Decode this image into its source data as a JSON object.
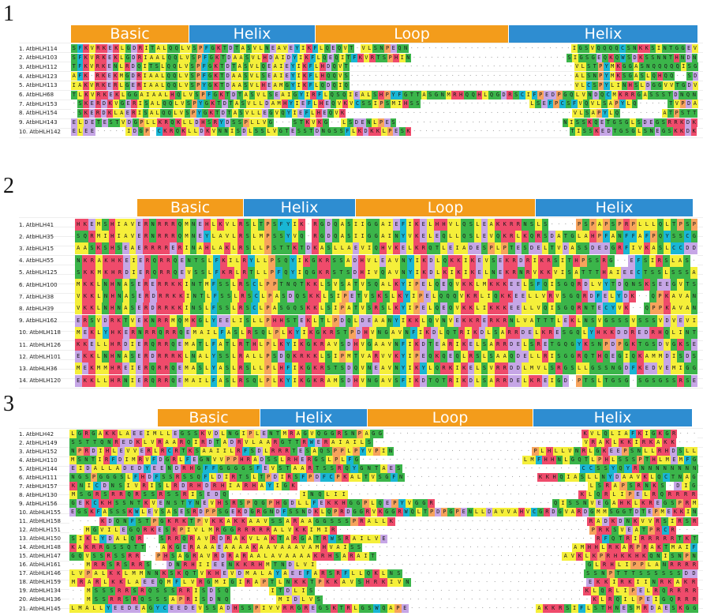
{
  "colors": {
    "basic": "#f39c1b",
    "helix": "#2e8dd1",
    "loop": "#f39c1b",
    "residue_palette": {
      "hydrophobic": "#f5ef3a",
      "polar": "#3bb54a",
      "positive": "#ef4b6b",
      "negative": "#c6a6e6",
      "aromatic": "#19b6d4",
      "special": "#f7a35c",
      "gap": "#ffffff"
    }
  },
  "panels": [
    {
      "number": "1",
      "domains": [
        {
          "label": "Basic",
          "color": "basic"
        },
        {
          "label": "Helix",
          "color": "helix"
        },
        {
          "label": "Loop",
          "color": "loop"
        },
        {
          "label": "Helix",
          "color": "helix"
        }
      ],
      "sequences": [
        {
          "name": "1. AtbHLH114",
          "seq": "SFKVRKEKLGDRITALQQLVSPFGKTDTASVLNEAVEYIKFLQEQVT-VLSNPEQN---------------------------IGSVQQQQCSNKKSINTGGEV"
        },
        {
          "name": "2. AtbHLH103",
          "seq": "SFKVRKEKLGDRIAALQQLVSPFGKTDAASVLHDAIDYIKFLQEQITFKVRTSPHIN--------------------------SIGSGEQKQWSDKSSNNTHNDN"
        },
        {
          "name": "3. AtbHLH112",
          "seq": "TFKVRKENLRDQITSLQQLVSPFGKTDTASVLQEAIEYIKFLHDQVT--------------------------------------VLSTPYMKGGASNQQQQQISG"
        },
        {
          "name": "4. AtbHLH123",
          "seq": "AFK-RKEKMGDRIAALQQLVSPFGKTDAASVLSEAIEYIKFLHQQVS--------------------------------------ALSNPYMKSGASLQHQQ--SD"
        },
        {
          "name": "5. AtbHLH113",
          "seq": "IAKVRKERLGERIAALQQLVSPYGKTDAASVLHEAMGYIKFLQDQIQ--------------------------------------VLCSPYLINHSLDGGVVTGDV"
        },
        {
          "name": "6. AtbHLH68",
          "seq": "TLKVRKEKLGGAIAALHQLVSPFGKTDTASVLSEAIGYIRFLQSQIEALSHPYFGTTASGNMRHQQHLQGDRSCIFPEDPGQLVNDQCMKRRGASSSTDNQN"
        },
        {
          "name": "7. AtbHLH153",
          "seq": "-SKERDKVGERISALQQLVSPYGKTDTASVLLDAMHYIEFLHEQVKVCSSIPSMIHSS------------------LSEFPCSFVQVLSAPYLQ-----TVPDA"
        },
        {
          "name": "8. AtbHLH154",
          "seq": "-SKERDKLAERISALQQLVSPYGKTDTASVLLEGVQYIEFLHEQVK--------------------------------------VLSAPYLQ-------ATPSTT"
        },
        {
          "name": "9. AtbHLH143",
          "seq": "ELDETESTVDGPLLKRQKLLDHSRYDSSPLLVG---STKVKG--LSDENLPES---------------------------NISSKQETGSGLSDEGSRRKDK"
        },
        {
          "name": "10. AtbHLH142",
          "seq": "ELEE-----IDGP-CKRQKLLDKVNNISDLSSLVGTESSTDNGSSFLKDKKLPESK--------------------------TISSKEDTGSGLSNEGSKKDK"
        }
      ]
    },
    {
      "number": "2",
      "domains": [
        {
          "label": "Basic",
          "color": "basic"
        },
        {
          "label": "Helix",
          "color": "helix"
        },
        {
          "label": "Loop",
          "color": "loop"
        },
        {
          "label": "Helix",
          "color": "helix"
        }
      ],
      "sequences": [
        {
          "name": "1. AtbHLH41",
          "seq": "HKEMSHIAVERNRRRQMNEHLKVLRSLTPSFYIK-RGDQASIIGGAIEFIKELHHVLQSLEAKKRRNSLS----PSPAPSPRPLLLQLTPSP"
        },
        {
          "name": "2. AtbHLH35",
          "seq": "SQRMIHIAVERNRRRQMNEYLAVLRSLMPSSYVQ-RGDQASIIGGAINYVKELEQLLQSLEVQKRLKQRSDATGLAHPFANFFAFPQYSSCG"
        },
        {
          "name": "3. AtbHLH15",
          "seq": "AASKSHSEAERRRRERINAHLAKLRSLLPSTTKTDKASLLAEVIQHVKELKRQTLEIADESPLPTESDELTVDASSDEDGRFIVKASLCCDD"
        },
        {
          "name": "4. AtbHLH55",
          "seq": "NKRAKHKEIERQRRQENTSLFKILRYLLPSQYIKGKRSSADHVLEAVNYIKDLQKKIKEVSEKRDRIKRSITHPSSRG--EFSIRSLAS-"
        },
        {
          "name": "5. AtbHLH125",
          "seq": "SKKMKHRDIERQRRQEVSSLFKRLRTLLPFQYIQGKRSTSDHIVQAVNYIKDLKIKIKELNEKRNRVKKVISATTTHAIEECTSSLSSSA"
        },
        {
          "name": "6. AtbHLH100",
          "seq": "MKKLNHNASERERRKKINTMFSSLRSCLPPTNQTKKLSVSATVSQALKYIPELQEQVKKLMKKKEELSFQISGQRDLVYTDQNSKSEEGVTS"
        },
        {
          "name": "7. AtbHLH38",
          "seq": "VKKLNHNASERDRRKKINTLFSSLRSCLPASDQSKKLSIPETVSKSLKYIPELQQQVKRLIQKKEELLVRVSGQRDFELYDK--QPKAVAN"
        },
        {
          "name": "8. AtbHLH39",
          "seq": "VKKLNHNASERDRRKKINSLFSSLRSCLPASGQSKKLSIPATVSRSLKYIPELQEQVKKLIKKKEELLVQISGQRNTECYVK--QPPKAVAN"
        },
        {
          "name": "9. AtbHLH162",
          "seq": "ERSVDRKTVEKNRRMQMKGLYEELISLLPHHSTEKLTLPDQLDEAANYIKKLQVNVEKKRERKRNLVATTTLEKLNSVGSSSVSSSVDVEVI"
        },
        {
          "name": "10. AtbHLH118",
          "seq": "MEKLYHKERNRRQRRQEMAILFASLRSQLPLKYIKGKRSTPDHVNGAVNFIKDLQTRIKDLSARRDELKRESGQLYHKKDDREDRHQLINT"
        },
        {
          "name": "11. AtbHLH126",
          "seq": "KKELLHRDIERQRRQEMATLFATLRTHLPLKYIKGKRAVSDHVGAAVNFIKDTEARIKELSARRDELSRETGQGYKSNPDPGKTGSDVGKSE"
        },
        {
          "name": "12. AtbHLH101",
          "seq": "EKKLNHNASERDRRRKLNALYSSLRALLPSDQKRKKLSIPMTVARVVKYIPEQKQEQLRSLSAAQDELLRISGGRQTHQEGIQKAMMDISDS"
        },
        {
          "name": "13. AtbHLH36",
          "seq": "MEKMMHREIERQRRQEMASLYASLRSLLPLHFIKGKRSTSDQVNEAVNYIKYLQRKIKELSVRRDDLMVLSRGSLLGSSNGDFKEDVEMIGG"
        },
        {
          "name": "14. AtbHLH120",
          "seq": "EKKLLHRNIERQRRQEMAILFASLRSQLPLKYIKGKRAMSDHVNGAVSFIKDTQTRIKDLSARRDELKREIGD-PTSLTGSG-SGSGSSRSE"
        }
      ]
    },
    {
      "number": "3",
      "domains": [
        {
          "label": "Basic",
          "color": "basic"
        },
        {
          "label": "Helix",
          "color": "helix"
        },
        {
          "label": "Loop",
          "color": "loop"
        },
        {
          "label": "Helix",
          "color": "helix"
        }
      ],
      "sequences": [
        {
          "name": "1. AtbHLH42",
          "seq": "LGRGAKKLAEEIMLLEGSSKVDLNGIPLENTMRAGVQGGRSNPAGG-----------------------------KVLQLIAFKIGKGR---"
        },
        {
          "name": "2. AtbHLH149",
          "seq": "SSTTQNREDKLVRAARQIRDTADRVLAARGTTRWERAIAILS-----------------------------VRAKLKKIRKAKK---"
        },
        {
          "name": "3. AtbHLH152",
          "seq": "NPRDIHLEVVERLRCRTKSAAIILRFSDLRRRTESAQSPPLPYVPIN--------------------PLHLLVNRLGKEEPSNLLRHDSLL"
        },
        {
          "name": "4. AtbHLH110",
          "seq": "MSNTIRFDIMRVFDGRLFEGNVVPPHRADSSLRHERGSLPLFG------------------------LMFHHNLGQTLPHLSSSPTHLMEMFG"
        },
        {
          "name": "5. AtbHLH144",
          "seq": "EIDALLADEDYEENDRHGFFGGGGSFEVSTAARTSSRQYGNTAES------------------------CCSSYQYRNNNNNNNN"
        },
        {
          "name": "6. AtbHLH111",
          "seq": "NGSPGGGSLFHDFSSRSSQFLDIRTSLTPDIRSFPDFCPKALTVSGFN-------------------KKHQIASLLNYDAAVKLQCTNAG"
        },
        {
          "name": "7. AtbHLH157",
          "seq": "KNICDNSIVRISLRDRHDRHIARHAYIGK-------------------------------------LSRAPSRNKS-DIG"
        },
        {
          "name": "8. AtbHLH130",
          "seq": "MSGRSRRQRSSRSSRISEDQ---------INQLII-----------------------------KLQRLIPELRQRRRR"
        },
        {
          "name": "9. AtbHLH156",
          "seq": "GEKCKHSSNTKVENSTYNEVHSRSPQGPHGDLLFEKKHGGPLQEPYVGGR----------------QISSNVEGAHKLKREGSPRM"
        },
        {
          "name": "10. AtbHLH155",
          "seq": "EGSKFASSSKWLEVSASESRDPPSGEKDGRGNDFSSNDKLQPRDGGRVKGGRWQLTPDPGPENLLDAVVAHVCGRDGVARDGMMSGGTDTEPMEKKIN"
        },
        {
          "name": "11. AtbHLH158",
          "seq": "----KDQNFSTPGKRKTPVKKAKKAAVSSARAAGGSSSPRALLK--------------------------RADKDNKVVRSIRSR"
        },
        {
          "name": "12. AtbHLH151",
          "seq": "--MGVILEGQRKESRPIVLMRGGRRRRRALVKKIMIR-----------------------------------PRKSVEATPRCR---"
        },
        {
          "name": "13. AtbHLH150",
          "seq": "SIKLYDALQR--SRRQRAVRDRAKVLAKTARGATRWSRAILVE----------------------------RFQTRIRRRRRTKT"
        },
        {
          "name": "14. AtbHLH148",
          "seq": "KAKRRGSSQTT--AKGERAAAEAAAAKAAVAAAVAMHVAISS------------------------------AMHHLRKARPRAKTMAIF"
        },
        {
          "name": "15. AtbHLH147",
          "seq": "GQVSSRSSRR--PHSAGRAVRDRARAALAVAAAAKRHSARAIT--------------------------AVKLKPRHKKHKQNISNPN"
        },
        {
          "name": "16. AtbHLH161",
          "seq": "--MRRSRSRRS--DNRHIIEENKKRHMTNDLVI------------------------------------GLRHLIPPLANRRRR"
        },
        {
          "name": "17. AtbHLH146",
          "seq": "LVPALKKLMMNNKSKQTVKHEVDMALAYAEEFARSRFLLQKLNS------------------------SSNPTTTSSSSSSDD"
        },
        {
          "name": "18. AtbHLH159",
          "seq": "MRARLKKLAEEQMFLVRGMIGIRAPTLNKKTPKKAVSHRKIVN----------------------EKKIRKIINRKAKR"
        },
        {
          "name": "19. AtbHLH134",
          "seq": "--MSSSRRSRQSSSRRISDSQ-----ITDLIS-----------------------------------KLQRLIPELRQRRRR"
        },
        {
          "name": "20. AtbHLH136",
          "seq": "--MSSRRSRQSSSAPRISDNQ------MIDLVS-----------------------------------KLRQILPEIGQRRR"
        },
        {
          "name": "21. AtbHLH145",
          "seq": "LMALLYEEDEAGYCEEDEVSSADHSSPIVVRRGREGSKTRLGSWQAPE------------------AKKRSIFLSTHNESMRDAESKGG"
        }
      ]
    }
  ]
}
